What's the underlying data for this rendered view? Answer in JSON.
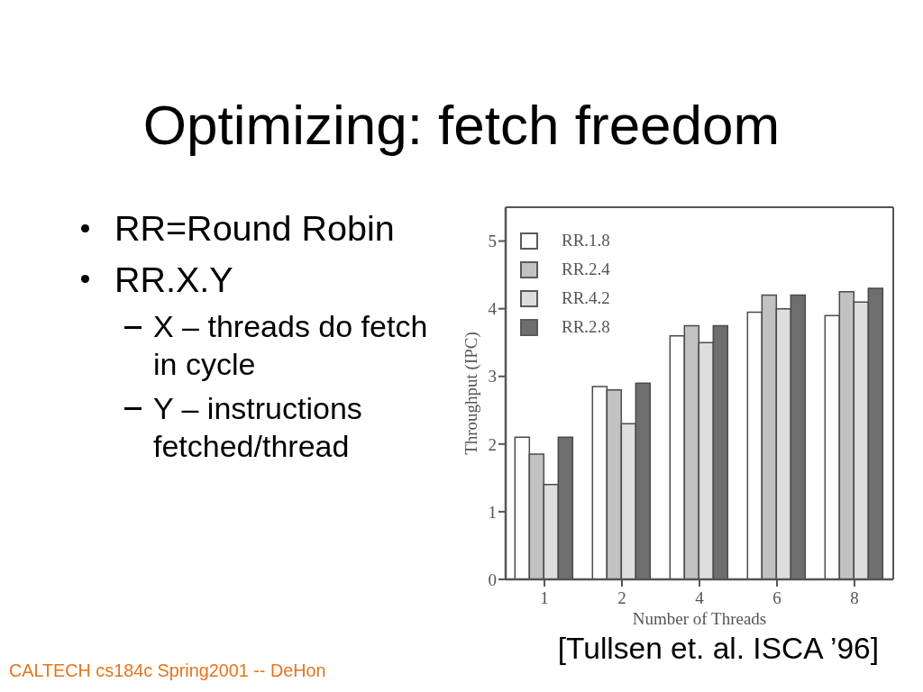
{
  "chart_data": {
    "type": "bar",
    "title": "Optimizing: fetch freedom",
    "annotations": [
      "RR=Round Robin",
      "RR.X.Y",
      "X – threads do fetch in cycle",
      "Y – instructions fetched/thread",
      "[Tullsen et. al. ISCA ’96]",
      "CALTECH cs184c Spring2001 -- DeHon"
    ],
    "xlabel": "Number of Threads",
    "ylabel": "Throughput (IPC)",
    "categories": [
      "1",
      "2",
      "4",
      "6",
      "8"
    ],
    "series": [
      {
        "name": "RR.1.8",
        "color": "#ffffff",
        "values": [
          2.1,
          2.85,
          3.6,
          3.95,
          3.9
        ]
      },
      {
        "name": "RR.2.4",
        "color": "#c2c2c2",
        "values": [
          1.85,
          2.8,
          3.75,
          4.2,
          4.25
        ]
      },
      {
        "name": "RR.4.2",
        "color": "#dedede",
        "values": [
          1.4,
          2.3,
          3.5,
          4.0,
          4.1
        ]
      },
      {
        "name": "RR.2.8",
        "color": "#6e6e6e",
        "values": [
          2.1,
          2.9,
          3.75,
          4.2,
          4.3
        ]
      }
    ],
    "ylim": [
      0,
      5.5
    ],
    "yticks": [
      0,
      1,
      2,
      3,
      4,
      5
    ],
    "legend": "top left"
  }
}
